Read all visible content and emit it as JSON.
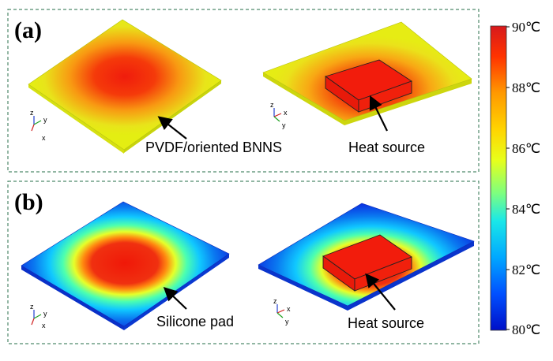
{
  "panels": [
    {
      "label": "(a)",
      "material_label": "PVDF/oriented BNNS",
      "source_label": "Heat source"
    },
    {
      "label": "(b)",
      "material_label": "Silicone pad",
      "source_label": "Heat source"
    }
  ],
  "axes_triad": {
    "z": "z",
    "y": "y",
    "x": "x"
  },
  "colorbar": {
    "ticks": [
      "90℃",
      "88℃",
      "86℃",
      "84℃",
      "82℃",
      "80℃"
    ],
    "min_value": 80,
    "max_value": 90,
    "unit": "℃",
    "colors": [
      "#d7191c",
      "#ff4000",
      "#ff9900",
      "#ffd400",
      "#e8ff1a",
      "#7dff80",
      "#1ae8e8",
      "#00a8ff",
      "#0050ff",
      "#0010c8"
    ]
  },
  "colors": {
    "hot": "#f02010",
    "plate_a_edge": "#e4ee10",
    "plate_b_edge": "#1540e0",
    "frame": "#4f8a6c"
  }
}
